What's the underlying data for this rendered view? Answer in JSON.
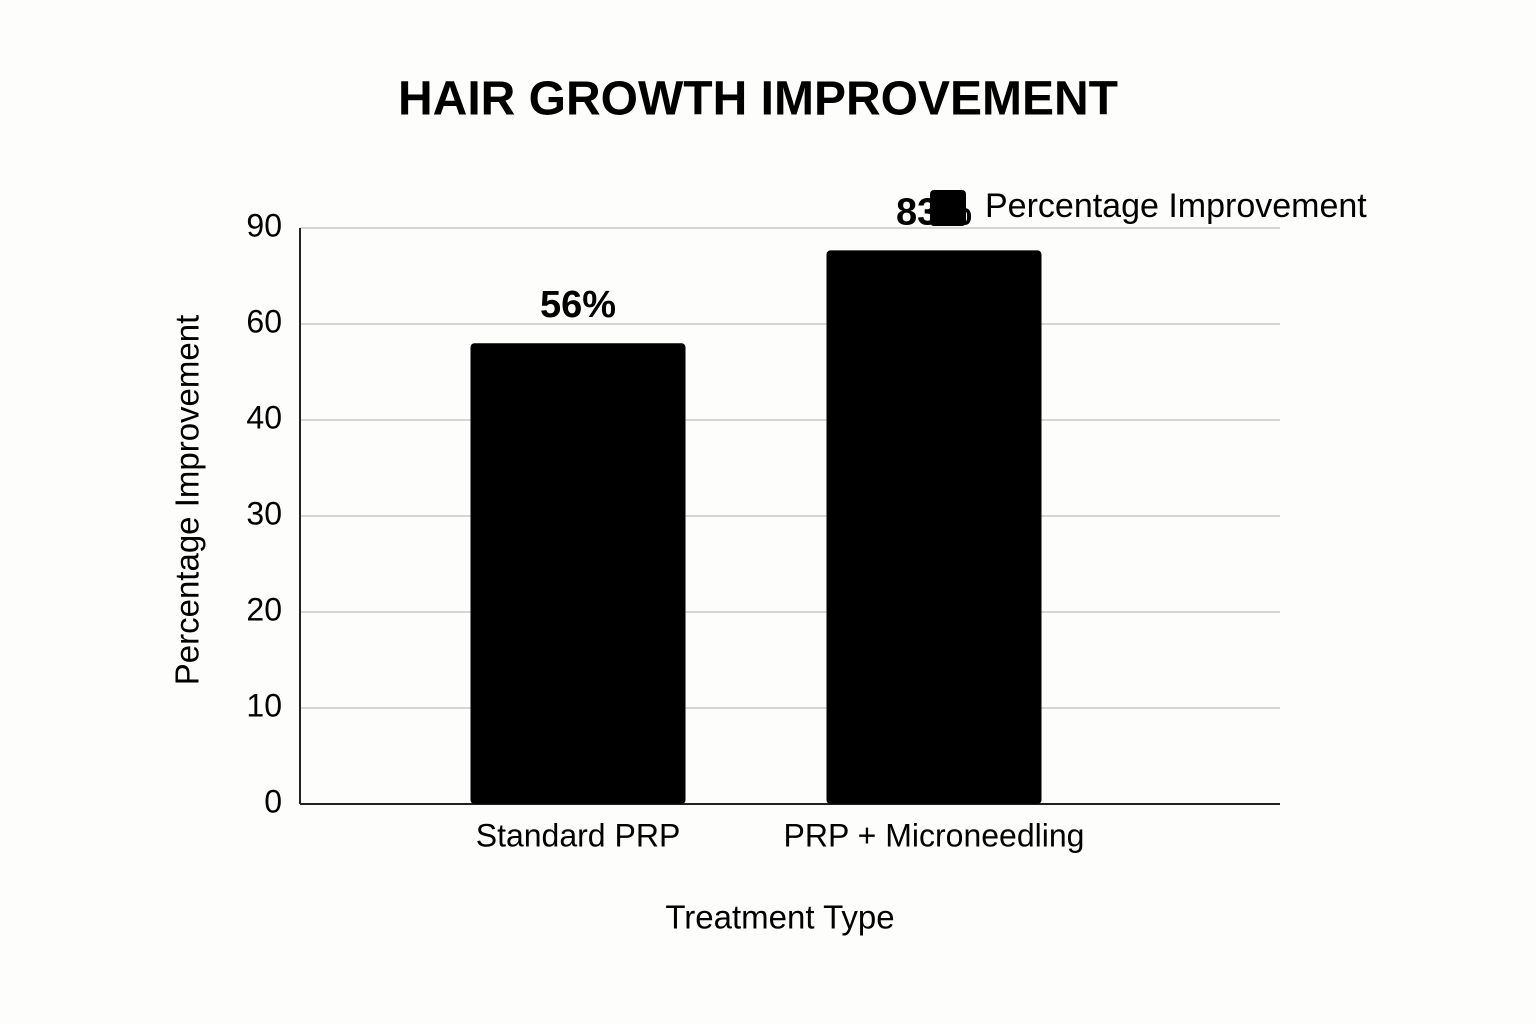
{
  "chart_data": {
    "type": "bar",
    "title": "HAIR GROWTH IMPROVEMENT",
    "x_label": "Treatment Type",
    "y_label": "Percentage Improvement",
    "categories": [
      "Standard PRP",
      "PRP + Microneedling"
    ],
    "series": [
      {
        "name": "Percentage Improvement",
        "color": "#000000",
        "values": [
          56,
          83
        ],
        "value_labels": [
          "56%",
          "83%"
        ]
      }
    ],
    "ylim": [
      0,
      90
    ],
    "yticks": [
      0,
      10,
      20,
      30,
      40,
      60,
      90
    ],
    "grid": true,
    "legend": "top-right"
  }
}
